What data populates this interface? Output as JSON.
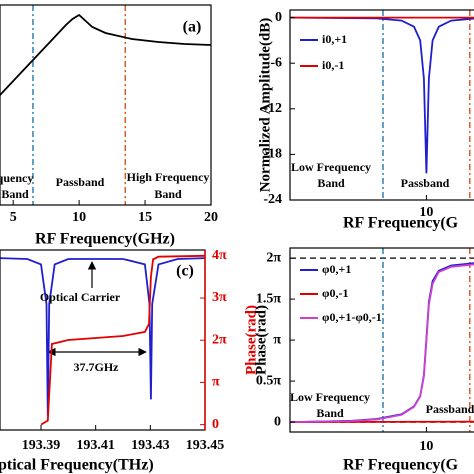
{
  "chart_data": [
    {
      "type": "line",
      "label": "(a)",
      "xlabel": "RF Frequency(GHz)",
      "xlim": [
        4,
        20
      ],
      "xticks": [
        5,
        10,
        15,
        20
      ],
      "ylim": [
        0,
        1
      ],
      "series": [
        {
          "color": "#000000",
          "x": [
            4,
            5,
            6,
            7,
            8,
            9,
            9.5,
            10,
            10.5,
            11,
            12,
            14,
            16,
            18,
            20
          ],
          "values": [
            0.55,
            0.62,
            0.69,
            0.76,
            0.83,
            0.9,
            0.93,
            0.95,
            0.92,
            0.89,
            0.86,
            0.83,
            0.815,
            0.805,
            0.8
          ]
        }
      ],
      "vlines": [
        {
          "x": 6.5,
          "color": "#1f77b4"
        },
        {
          "x": 13.5,
          "color": "#d95319"
        }
      ],
      "annotations": [
        "quency",
        "Band",
        "Passband",
        "High Frequency",
        "Band"
      ]
    },
    {
      "type": "line",
      "xlabel": "RF Frequency(G",
      "ylabel": "Normalized Amplitude(dB)",
      "xlim": [
        -1,
        14
      ],
      "xticks": [
        10
      ],
      "ylim": [
        -24,
        1
      ],
      "yticks": [
        0,
        -6,
        -12,
        -18,
        -24
      ],
      "series": [
        {
          "name": "i0,+1",
          "color": "#1f1fd0",
          "x": [
            -1,
            6,
            8,
            9,
            9.5,
            9.8,
            10,
            10.2,
            10.5,
            11,
            12,
            14
          ],
          "values": [
            0,
            -0.1,
            -0.4,
            -1.2,
            -3,
            -8,
            -20.5,
            -8,
            -3,
            -1.2,
            -0.4,
            -0.1
          ]
        },
        {
          "name": "i0,-1",
          "color": "#e00000",
          "x": [
            -1,
            14
          ],
          "values": [
            0,
            0
          ]
        }
      ],
      "vlines": [
        {
          "x": 6.5,
          "color": "#1f77b4"
        },
        {
          "x": 13.5,
          "color": "#d95319"
        }
      ],
      "annotations": [
        "Low Frequency",
        "Band",
        "Passband"
      ]
    },
    {
      "type": "line",
      "label": "(c)",
      "xlabel": "ptical Frequency(THz)",
      "y2label": "Phase(rad)",
      "y2color": "#e00000",
      "xlim": [
        193.375,
        193.45
      ],
      "xticks": [
        193.39,
        193.41,
        193.43,
        193.45
      ],
      "ylim": [
        0,
        1
      ],
      "y2lim": [
        -0.4,
        13
      ],
      "y2ticks": [
        0,
        {
          "value": 3.1416,
          "label": "π"
        },
        {
          "value": 6.2832,
          "label": "2π"
        },
        {
          "value": 9.4248,
          "label": "3π"
        },
        {
          "value": 12.5664,
          "label": "4π"
        }
      ],
      "series": [
        {
          "color": "#1f1fd0",
          "x": [
            193.375,
            193.385,
            193.39,
            193.392,
            193.3925,
            193.393,
            193.395,
            193.4,
            193.42,
            193.428,
            193.4297,
            193.4302,
            193.4307,
            193.433,
            193.44,
            193.45
          ],
          "values": [
            0.955,
            0.95,
            0.92,
            0.7,
            0.08,
            0.7,
            0.92,
            0.95,
            0.95,
            0.92,
            0.7,
            0.17,
            0.7,
            0.92,
            0.95,
            0.955
          ]
        },
        {
          "color": "#e00000",
          "axis": "y2",
          "x": [
            193.39,
            193.3925,
            193.394,
            193.4,
            193.42,
            193.428,
            193.4295,
            193.4302,
            193.431,
            193.433,
            193.45
          ],
          "values": [
            0,
            0.3,
            6.0,
            6.3,
            6.6,
            6.9,
            7.5,
            11,
            12.3,
            12.5,
            12.566
          ]
        }
      ],
      "annotations": [
        "Optical Carrier",
        "37.7GHz"
      ]
    },
    {
      "type": "line",
      "xlabel": "RF Frequency(G",
      "ylabel": "Phase(rad)",
      "xlim": [
        -1,
        14
      ],
      "xticks": [
        10
      ],
      "ylim": [
        -0.38,
        6.67
      ],
      "yticks": [
        0,
        {
          "value": 1.5708,
          "label": "0.5π"
        },
        {
          "value": 3.1416,
          "label": "π"
        },
        {
          "value": 4.7124,
          "label": "1.5π"
        },
        {
          "value": 6.2832,
          "label": "2π"
        }
      ],
      "series": [
        {
          "name": "φ0,+1",
          "color": "#1f1fd0",
          "x": [
            -1,
            4,
            6,
            8,
            9,
            9.5,
            9.8,
            10,
            10.2,
            10.5,
            11,
            12,
            14
          ],
          "values": [
            0,
            0.05,
            0.12,
            0.3,
            0.6,
            1.0,
            1.8,
            3.2,
            4.6,
            5.4,
            5.8,
            6.0,
            6.1
          ]
        },
        {
          "name": "φ0,-1",
          "color": "#e00000",
          "x": [
            -1,
            14
          ],
          "values": [
            0,
            0.02
          ]
        },
        {
          "name": "φ0,+1-φ0,-1",
          "color": "#d040d0",
          "x": [
            -1,
            4,
            6,
            8,
            9,
            9.5,
            9.8,
            10,
            10.2,
            10.5,
            11,
            12,
            14
          ],
          "values": [
            0,
            0.04,
            0.1,
            0.28,
            0.58,
            0.98,
            1.75,
            3.1,
            4.5,
            5.3,
            5.75,
            5.95,
            6.05
          ]
        }
      ],
      "hlines": [
        0,
        6.2832
      ],
      "vlines": [
        {
          "x": 6.5,
          "color": "#1f77b4"
        },
        {
          "x": 13.5,
          "color": "#d95319"
        }
      ],
      "annotations": [
        "Low Frequency",
        "Band",
        "Passband"
      ]
    }
  ]
}
